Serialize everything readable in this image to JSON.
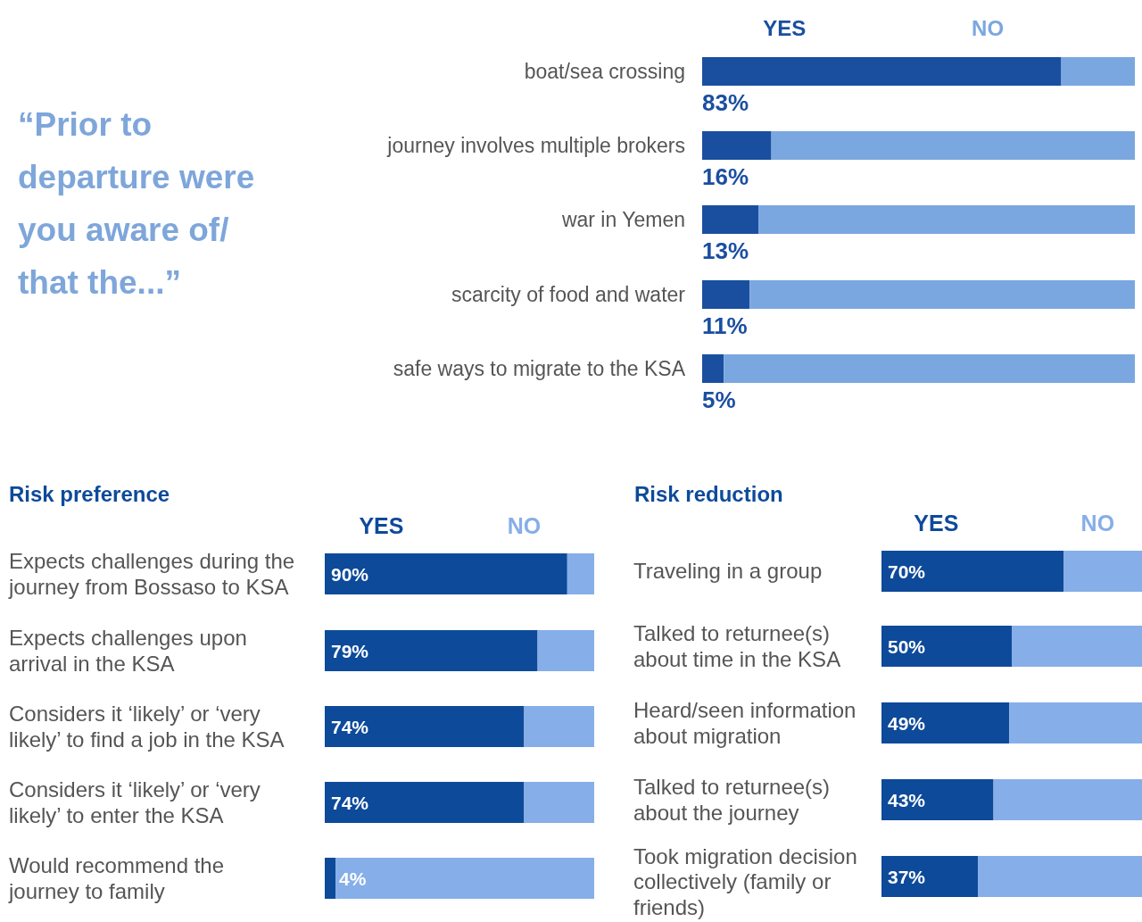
{
  "chart_data": [
    {
      "type": "bar",
      "orientation": "horizontal",
      "stacked": true,
      "title": "“Prior to departure were you aware of/ that the...”",
      "categories": [
        "boat/sea crossing",
        "journey involves multiple brokers",
        "war in Yemen",
        "scarcity of food and water",
        "safe ways to migrate to the KSA"
      ],
      "xlim": [
        0,
        100
      ],
      "legend": "top",
      "series": [
        {
          "name": "YES",
          "color": "#1a4fa0",
          "values": [
            83,
            16,
            13,
            11,
            5
          ],
          "value_labels": [
            "83%",
            "16%",
            "13%",
            "11%",
            "5%"
          ]
        },
        {
          "name": "NO",
          "color": "#7ba7e0",
          "values": [
            17,
            84,
            87,
            89,
            95
          ]
        }
      ]
    },
    {
      "type": "bar",
      "orientation": "horizontal",
      "stacked": true,
      "title": "Risk preference",
      "categories": [
        "Expects challenges during the journey from Bossaso to KSA",
        "Expects challenges upon arrival in the KSA",
        "Considers it ‘likely’ or ‘very likely’ to find a job in the KSA",
        "Considers it ‘likely’ or ‘very likely’ to enter the KSA",
        "Would recommend the journey to family"
      ],
      "xlim": [
        0,
        100
      ],
      "legend": "top",
      "series": [
        {
          "name": "YES",
          "color": "#0d4a9a",
          "values": [
            90,
            79,
            74,
            74,
            4
          ],
          "value_labels": [
            "90%",
            "79%",
            "74%",
            "74%",
            "4%"
          ]
        },
        {
          "name": "NO",
          "color": "#86aee8",
          "values": [
            10,
            21,
            26,
            26,
            96
          ]
        }
      ]
    },
    {
      "type": "bar",
      "orientation": "horizontal",
      "stacked": true,
      "title": "Risk reduction",
      "categories": [
        "Traveling in a group",
        "Talked to returnee(s) about time in the KSA",
        "Heard/seen information about migration",
        "Talked to returnee(s) about the journey",
        "Took migration decision collectively (family or friends)"
      ],
      "xlim": [
        0,
        100
      ],
      "legend": "top",
      "series": [
        {
          "name": "YES",
          "color": "#0d4a9a",
          "values": [
            70,
            50,
            49,
            43,
            37
          ],
          "value_labels": [
            "70%",
            "50%",
            "49%",
            "43%",
            "37%"
          ]
        },
        {
          "name": "NO",
          "color": "#86aee8",
          "values": [
            30,
            50,
            51,
            57,
            63
          ]
        }
      ]
    }
  ]
}
